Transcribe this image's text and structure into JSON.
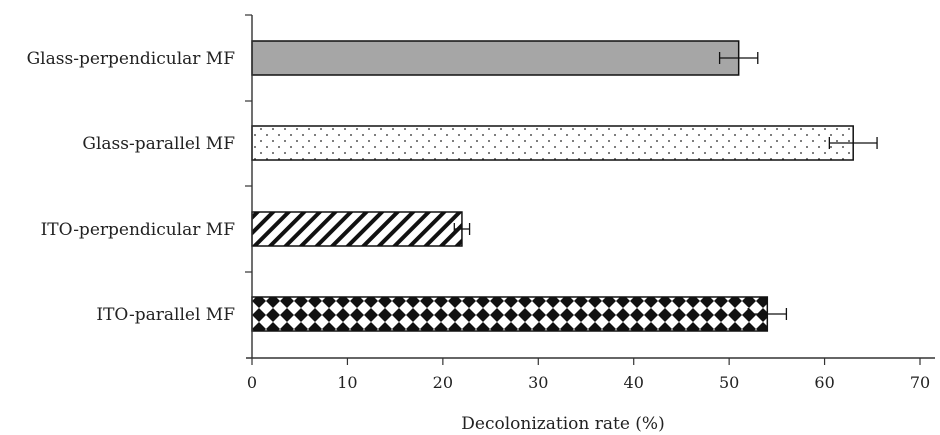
{
  "chart_data": {
    "type": "bar",
    "orientation": "horizontal",
    "categories": [
      "Glass-perpendicular MF",
      "Glass-parallel MF",
      "ITO-perpendicular MF",
      "ITO-parallel MF"
    ],
    "values": [
      51,
      63,
      22,
      54
    ],
    "errors": [
      2,
      2.5,
      0.8,
      2
    ],
    "xlabel": "Decolonization rate (%)",
    "xlim": [
      0,
      70
    ],
    "xticks": [
      "0",
      "10",
      "20",
      "30",
      "40",
      "50",
      "60",
      "70"
    ],
    "grid": false,
    "bar_fills": [
      "gray-solid",
      "dotted",
      "diagonal-hatch",
      "diamond-checker"
    ],
    "colors": {
      "bar_gray": "#a6a6a6",
      "outline": "#111111"
    }
  }
}
